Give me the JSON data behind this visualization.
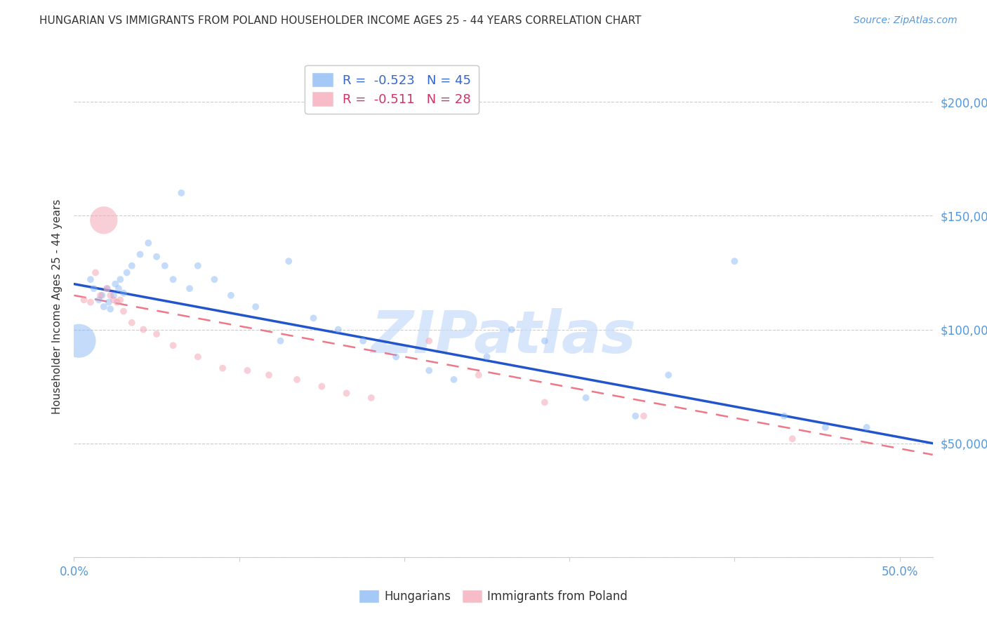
{
  "title": "HUNGARIAN VS IMMIGRANTS FROM POLAND HOUSEHOLDER INCOME AGES 25 - 44 YEARS CORRELATION CHART",
  "source": "Source: ZipAtlas.com",
  "ylabel": "Householder Income Ages 25 - 44 years",
  "yticks": [
    0,
    50000,
    100000,
    150000,
    200000
  ],
  "ytick_labels": [
    "",
    "$50,000",
    "$100,000",
    "$150,000",
    "$200,000"
  ],
  "ylim": [
    0,
    220000
  ],
  "xlim": [
    0.0,
    0.52
  ],
  "legend1_text": "R =  -0.523   N = 45",
  "legend2_text": "R =  -0.511   N = 28",
  "watermark": "ZIPatlas",
  "blue_scatter_x": [
    0.003,
    0.01,
    0.012,
    0.015,
    0.017,
    0.018,
    0.02,
    0.021,
    0.022,
    0.024,
    0.025,
    0.027,
    0.028,
    0.03,
    0.032,
    0.035,
    0.04,
    0.045,
    0.05,
    0.055,
    0.06,
    0.065,
    0.07,
    0.075,
    0.085,
    0.095,
    0.11,
    0.125,
    0.13,
    0.145,
    0.16,
    0.175,
    0.195,
    0.215,
    0.23,
    0.25,
    0.265,
    0.285,
    0.31,
    0.34,
    0.36,
    0.4,
    0.43,
    0.455,
    0.48
  ],
  "blue_scatter_y": [
    95000,
    122000,
    118000,
    113000,
    115000,
    110000,
    118000,
    112000,
    109000,
    115000,
    120000,
    118000,
    122000,
    116000,
    125000,
    128000,
    133000,
    138000,
    132000,
    128000,
    122000,
    160000,
    118000,
    128000,
    122000,
    115000,
    110000,
    95000,
    130000,
    105000,
    100000,
    95000,
    88000,
    82000,
    78000,
    88000,
    100000,
    95000,
    70000,
    62000,
    80000,
    130000,
    62000,
    57000,
    57000
  ],
  "blue_scatter_size": [
    1200,
    50,
    50,
    50,
    50,
    50,
    50,
    50,
    50,
    50,
    50,
    50,
    50,
    50,
    50,
    50,
    50,
    50,
    50,
    50,
    50,
    50,
    50,
    50,
    50,
    50,
    50,
    50,
    50,
    50,
    50,
    50,
    50,
    50,
    50,
    50,
    50,
    50,
    50,
    50,
    50,
    50,
    50,
    50,
    50
  ],
  "pink_scatter_x": [
    0.006,
    0.01,
    0.013,
    0.016,
    0.018,
    0.02,
    0.022,
    0.024,
    0.026,
    0.028,
    0.03,
    0.035,
    0.042,
    0.05,
    0.06,
    0.075,
    0.09,
    0.105,
    0.118,
    0.135,
    0.15,
    0.165,
    0.18,
    0.215,
    0.245,
    0.285,
    0.345,
    0.435
  ],
  "pink_scatter_y": [
    113000,
    112000,
    125000,
    115000,
    148000,
    118000,
    115000,
    113000,
    112000,
    113000,
    108000,
    103000,
    100000,
    98000,
    93000,
    88000,
    83000,
    82000,
    80000,
    78000,
    75000,
    72000,
    70000,
    95000,
    80000,
    68000,
    62000,
    52000
  ],
  "pink_scatter_size": [
    50,
    50,
    50,
    50,
    800,
    50,
    50,
    50,
    50,
    50,
    50,
    50,
    50,
    50,
    50,
    50,
    50,
    50,
    50,
    50,
    50,
    50,
    50,
    50,
    50,
    50,
    50,
    50
  ],
  "blue_line_x": [
    0.0,
    0.52
  ],
  "blue_line_y": [
    120000,
    50000
  ],
  "pink_line_x": [
    0.0,
    0.52
  ],
  "pink_line_y": [
    115000,
    45000
  ],
  "title_fontsize": 11,
  "source_fontsize": 10,
  "axis_label_fontsize": 11,
  "tick_fontsize": 12,
  "grid_color": "#cccccc",
  "spine_color": "#cccccc",
  "tick_color": "#5599DD",
  "title_color": "#333333",
  "ylabel_color": "#333333",
  "source_color": "#5599DD",
  "blue_scatter_color": "#7EB3F5",
  "pink_scatter_color": "#F5A0B0",
  "blue_line_color": "#2255CC",
  "pink_line_color": "#EE7788",
  "legend_blue_text_color": "#3366CC",
  "legend_pink_text_color": "#CC3366",
  "watermark_color": "#C8DCFA",
  "bottom_legend_label1": "Hungarians",
  "bottom_legend_label2": "Immigrants from Poland"
}
